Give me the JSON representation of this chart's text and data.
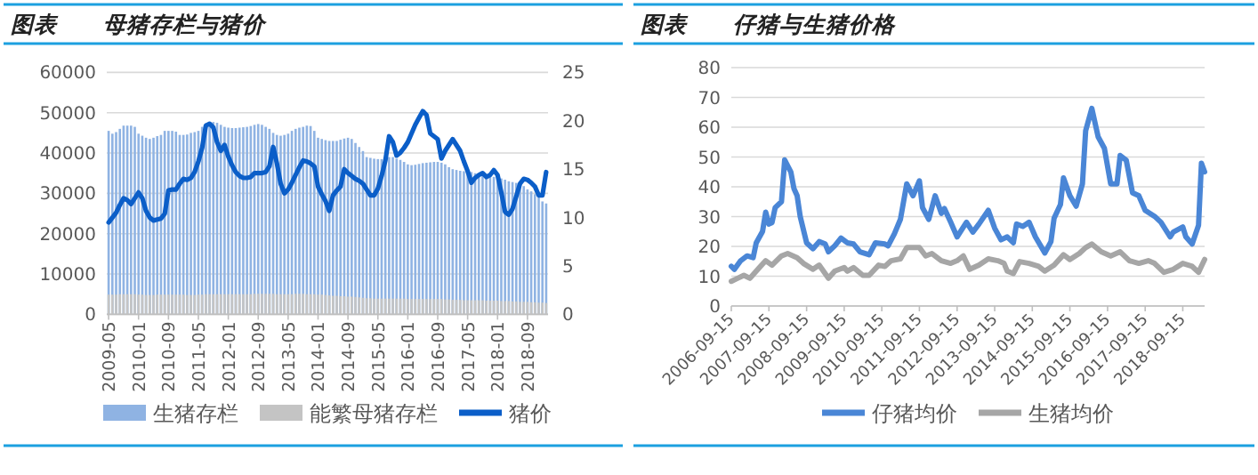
{
  "chart_data": [
    {
      "type": "bar",
      "title": "图表　　母猪存栏与猪价",
      "categories": [
        "2009-05",
        null,
        null,
        null,
        null,
        null,
        null,
        null,
        "2010-01",
        null,
        null,
        null,
        null,
        null,
        null,
        null,
        "2010-09",
        null,
        null,
        null,
        null,
        null,
        null,
        null,
        "2011-05",
        null,
        null,
        null,
        null,
        null,
        null,
        null,
        "2012-01",
        null,
        null,
        null,
        null,
        null,
        null,
        null,
        "2012-09",
        null,
        null,
        null,
        null,
        null,
        null,
        null,
        "2013-05",
        null,
        null,
        null,
        null,
        null,
        null,
        null,
        "2014-01",
        null,
        null,
        null,
        null,
        null,
        null,
        null,
        "2014-09",
        null,
        null,
        null,
        null,
        null,
        null,
        null,
        "2015-05",
        null,
        null,
        null,
        null,
        null,
        null,
        null,
        "2016-01",
        null,
        null,
        null,
        null,
        null,
        null,
        null,
        "2016-09",
        null,
        null,
        null,
        null,
        null,
        null,
        null,
        "2017-05",
        null,
        null,
        null,
        null,
        null,
        null,
        null,
        "2018-01",
        null,
        null,
        null,
        null,
        null,
        null,
        null,
        "2018-09",
        null,
        null,
        null,
        null,
        null
      ],
      "series": [
        {
          "name": "生猪存栏",
          "color": "#8fb3e3",
          "values": [
            45500,
            44800,
            45200,
            46000,
            46800,
            46800,
            46800,
            46500,
            44800,
            44300,
            43800,
            43500,
            43800,
            44200,
            44500,
            45500,
            45500,
            45500,
            45300,
            44500,
            44500,
            44600,
            45000,
            45200,
            45500,
            46500,
            47400,
            47700,
            47700,
            47500,
            47000,
            46500,
            46300,
            46200,
            46200,
            46300,
            46400,
            46500,
            46700,
            47000,
            47200,
            47000,
            46500,
            46000,
            45000,
            44500,
            44300,
            44500,
            44800,
            45500,
            46000,
            46300,
            46500,
            46800,
            46700,
            45500,
            43800,
            43500,
            43200,
            43000,
            43000,
            43000,
            43300,
            43600,
            43800,
            43500,
            42500,
            41500,
            40500,
            39000,
            38800,
            38600,
            38500,
            38500,
            38800,
            39000,
            39000,
            38600,
            38300,
            37800,
            37200,
            37000,
            37100,
            37300,
            37500,
            37600,
            37700,
            37800,
            37800,
            37600,
            37200,
            36500,
            36000,
            35800,
            35600,
            35500,
            35500,
            35300,
            35000,
            34700,
            34500,
            34300,
            34200,
            34100,
            34000,
            33700,
            33400,
            33000,
            32800,
            32600,
            32300,
            31800,
            31000,
            30500,
            29800,
            29000,
            28000,
            27500
          ]
        },
        {
          "name": "能繁母猪存栏",
          "color": "#c4c4c4",
          "values": [
            4900,
            4900,
            4900,
            5000,
            5000,
            5000,
            5000,
            5000,
            4900,
            4900,
            4800,
            4800,
            4800,
            4900,
            4900,
            4900,
            4900,
            4900,
            4900,
            4900,
            4900,
            4800,
            4800,
            4800,
            4900,
            4900,
            5000,
            5000,
            5000,
            5000,
            5000,
            5000,
            5000,
            5000,
            5000,
            5000,
            5000,
            5000,
            5000,
            5100,
            5100,
            5100,
            5100,
            5100,
            5100,
            5000,
            5000,
            5000,
            5000,
            5000,
            5100,
            5100,
            5100,
            5000,
            5000,
            5000,
            4900,
            4900,
            4800,
            4700,
            4600,
            4600,
            4500,
            4500,
            4400,
            4400,
            4300,
            4200,
            4100,
            4000,
            4000,
            3900,
            3900,
            3900,
            3900,
            3900,
            3900,
            3900,
            3900,
            3900,
            3800,
            3800,
            3800,
            3800,
            3800,
            3800,
            3800,
            3800,
            3800,
            3800,
            3700,
            3700,
            3600,
            3600,
            3600,
            3500,
            3500,
            3500,
            3500,
            3500,
            3500,
            3400,
            3400,
            3400,
            3400,
            3300,
            3300,
            3300,
            3200,
            3200,
            3100,
            3100,
            3100,
            3000,
            3000,
            2900,
            2900,
            2800
          ]
        },
        {
          "name": "猪价",
          "type": "line",
          "axis": "y2",
          "color": "#0b5ec8",
          "values": [
            9.5,
            10.0,
            10.5,
            11.3,
            12.0,
            11.8,
            11.4,
            12.0,
            12.6,
            12.0,
            10.7,
            10.0,
            9.7,
            9.8,
            9.9,
            10.4,
            12.8,
            12.9,
            12.9,
            13.5,
            14.0,
            13.9,
            14.1,
            14.7,
            15.8,
            17.2,
            19.5,
            19.7,
            19.3,
            17.8,
            16.9,
            17.5,
            16.3,
            15.4,
            14.7,
            14.3,
            14.1,
            14.1,
            14.2,
            14.6,
            14.6,
            14.6,
            14.7,
            15.3,
            17.3,
            15.6,
            13.5,
            12.5,
            12.9,
            13.6,
            14.4,
            15.2,
            15.9,
            15.8,
            15.6,
            15.3,
            13.2,
            12.4,
            11.7,
            10.7,
            12.3,
            12.8,
            13.2,
            15.0,
            14.6,
            14.3,
            14.0,
            13.8,
            13.5,
            12.9,
            12.3,
            12.3,
            13.0,
            14.3,
            15.9,
            18.4,
            17.8,
            16.4,
            16.7,
            17.2,
            17.8,
            18.7,
            19.6,
            20.3,
            21.0,
            20.6,
            18.7,
            18.4,
            18.1,
            16.1,
            16.9,
            17.5,
            18.1,
            17.5,
            16.9,
            15.8,
            14.8,
            13.6,
            14.1,
            14.4,
            14.6,
            14.2,
            14.4,
            14.9,
            14.4,
            12.6,
            10.6,
            10.3,
            10.9,
            12.2,
            13.5,
            14.0,
            13.9,
            13.6,
            13.2,
            12.3,
            12.3,
            14.7
          ]
        }
      ],
      "ylim": [
        0,
        60000
      ],
      "yticks": [
        0,
        10000,
        20000,
        30000,
        40000,
        50000,
        60000
      ],
      "y2lim": [
        0,
        25
      ],
      "y2ticks": [
        0,
        5,
        10,
        15,
        20,
        25
      ],
      "grid": "y",
      "legend": "bottom"
    },
    {
      "type": "line",
      "title": "图表　　仔猪与生猪价格",
      "series": [
        {
          "name": "仔猪均价",
          "color": "#4a86d6",
          "x": [
            "2006-09-15",
            "2006-10-15",
            "2006-12-15",
            "2007-02-15",
            "2007-04-15",
            "2007-05-15",
            "2007-07-15",
            "2007-08-15",
            "2007-09-15",
            "2007-10-15",
            "2007-11-15",
            "2008-01-15",
            "2008-02-15",
            "2008-04-15",
            "2008-05-15",
            "2008-06-15",
            "2008-07-15",
            "2008-09-15",
            "2008-11-15",
            "2009-01-15",
            "2009-03-15",
            "2009-04-15",
            "2009-06-15",
            "2009-08-15",
            "2009-10-15",
            "2009-12-15",
            "2010-02-15",
            "2010-05-15",
            "2010-07-15",
            "2010-10-15",
            "2010-11-15",
            "2011-01-15",
            "2011-03-15",
            "2011-05-15",
            "2011-07-15",
            "2011-09-15",
            "2011-10-15",
            "2011-12-15",
            "2012-02-15",
            "2012-04-15",
            "2012-05-15",
            "2012-07-15",
            "2012-09-15",
            "2012-12-15",
            "2013-02-15",
            "2013-04-15",
            "2013-07-15",
            "2013-09-15",
            "2013-11-15",
            "2014-01-15",
            "2014-03-15",
            "2014-04-15",
            "2014-06-15",
            "2014-08-15",
            "2014-10-15",
            "2015-01-15",
            "2015-03-15",
            "2015-04-15",
            "2015-06-15",
            "2015-07-15",
            "2015-09-15",
            "2015-11-15",
            "2016-01-15",
            "2016-02-15",
            "2016-04-15",
            "2016-06-15",
            "2016-08-15",
            "2016-10-15",
            "2016-12-15",
            "2017-01-15",
            "2017-03-15",
            "2017-05-15",
            "2017-07-15",
            "2017-09-15",
            "2017-12-15",
            "2018-02-15",
            "2018-05-15",
            "2018-06-15",
            "2018-09-15",
            "2018-10-15",
            "2018-12-15",
            "2019-02-15",
            "2019-03-15",
            "2019-04-15"
          ],
          "values": [
            13.3,
            12.3,
            15.2,
            16.8,
            16.2,
            21.2,
            25,
            31.5,
            27.5,
            28,
            33,
            35,
            49,
            45,
            39.4,
            37,
            30,
            21.2,
            19.2,
            21.6,
            20.8,
            18.2,
            20.2,
            22.8,
            21.2,
            20.8,
            18.2,
            17.2,
            21.2,
            20.8,
            20.2,
            24.2,
            29.1,
            41,
            37,
            42,
            33,
            29.1,
            37,
            31.1,
            32.7,
            28.1,
            23.2,
            28.1,
            24.8,
            27.5,
            32.1,
            26.1,
            22.2,
            23.2,
            21.2,
            27.5,
            26.7,
            28.1,
            23.2,
            17.8,
            21.6,
            29.5,
            34,
            43,
            37,
            33.5,
            41,
            58.8,
            66.3,
            56.8,
            52.9,
            41,
            41,
            50.5,
            48.9,
            38,
            37,
            32.1,
            30.1,
            28.1,
            23.2,
            24.8,
            26.5,
            23.2,
            20.8,
            27.1,
            47.9,
            45
          ]
        },
        {
          "name": "生猪均价",
          "color": "#a6a6a6",
          "x": [
            "2006-09-15",
            "2006-11-15",
            "2007-01-15",
            "2007-03-15",
            "2007-06-15",
            "2007-08-15",
            "2007-10-15",
            "2008-01-15",
            "2008-03-15",
            "2008-06-15",
            "2008-08-15",
            "2008-11-15",
            "2009-01-15",
            "2009-04-15",
            "2009-06-15",
            "2009-09-15",
            "2009-10-15",
            "2009-12-15",
            "2010-03-15",
            "2010-05-15",
            "2010-08-15",
            "2010-10-15",
            "2010-12-15",
            "2011-03-15",
            "2011-05-15",
            "2011-09-15",
            "2011-11-15",
            "2012-01-15",
            "2012-04-15",
            "2012-07-15",
            "2012-09-15",
            "2012-11-15",
            "2013-01-15",
            "2013-04-15",
            "2013-07-15",
            "2013-10-15",
            "2013-12-15",
            "2014-01-15",
            "2014-03-15",
            "2014-05-15",
            "2014-08-15",
            "2014-11-15",
            "2015-01-15",
            "2015-04-15",
            "2015-07-15",
            "2015-09-15",
            "2015-12-15",
            "2016-02-15",
            "2016-04-15",
            "2016-07-15",
            "2016-10-15",
            "2017-01-15",
            "2017-04-15",
            "2017-07-15",
            "2017-10-15",
            "2017-12-15",
            "2018-03-15",
            "2018-06-15",
            "2018-09-15",
            "2018-12-15",
            "2019-02-15",
            "2019-04-15"
          ],
          "values": [
            8.3,
            9.3,
            10.3,
            9.3,
            12.9,
            15.2,
            13.7,
            16.8,
            17.6,
            16.2,
            14.3,
            12.3,
            13.7,
            9.3,
            11.7,
            12.9,
            11.7,
            12.9,
            10.3,
            10.3,
            13.7,
            13.3,
            15.2,
            15.8,
            19.6,
            19.6,
            16.8,
            17.6,
            15.2,
            14.3,
            15.2,
            16.8,
            12.3,
            13.7,
            15.8,
            15.2,
            14.3,
            11.7,
            10.9,
            14.9,
            14.3,
            13.3,
            11.7,
            13.7,
            17.2,
            15.6,
            17.6,
            19.6,
            20.8,
            18.2,
            16.8,
            18.2,
            15.2,
            14.3,
            15.2,
            14.3,
            11.3,
            12.3,
            14.3,
            13.3,
            11.3,
            15.6
          ]
        }
      ],
      "xlim": [
        "2006-09-15",
        "2019-04-15"
      ],
      "xticks": [
        "2006-09-15",
        "2007-09-15",
        "2008-09-15",
        "2009-09-15",
        "2010-09-15",
        "2011-09-15",
        "2012-09-15",
        "2013-09-15",
        "2014-09-15",
        "2015-09-15",
        "2016-09-15",
        "2017-09-15",
        "2018-09-15"
      ],
      "ylim": [
        0,
        80
      ],
      "yticks": [
        0,
        10,
        20,
        30,
        40,
        50,
        60,
        70,
        80
      ],
      "grid": "y",
      "legend": "bottom"
    }
  ]
}
